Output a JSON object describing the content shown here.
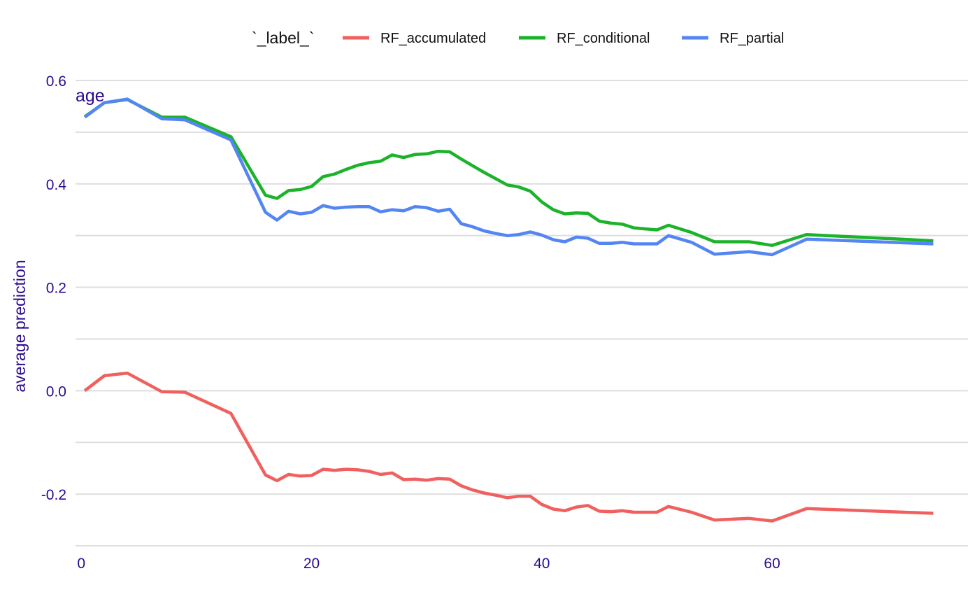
{
  "chart_data": {
    "type": "line",
    "panel_title": "age",
    "xlabel": "",
    "ylabel": "average prediction",
    "xlim": [
      -0.5,
      77
    ],
    "ylim": [
      -0.3,
      0.6
    ],
    "x_ticks": [
      0,
      20,
      40,
      60
    ],
    "x_tick_labels": [
      "0",
      "20",
      "40",
      "60"
    ],
    "y_ticks": [
      -0.2,
      0,
      0.2,
      0.4,
      0.6
    ],
    "y_tick_labels": [
      "-0.2",
      "0.0",
      "0.2",
      "0.4",
      "0.6"
    ],
    "grid": true,
    "legend": {
      "title": "`_label_`",
      "position": "top"
    },
    "series": [
      {
        "name": "RF_accumulated",
        "color": "#F0605E",
        "x": [
          0.3,
          2,
          4,
          7,
          9,
          13,
          16,
          17,
          18,
          19,
          20,
          21,
          22,
          23,
          24,
          25,
          26,
          27,
          28,
          29,
          30,
          31,
          32,
          33,
          34,
          35,
          36,
          37,
          38,
          39,
          40,
          41,
          42,
          43,
          44,
          45,
          46,
          47,
          48,
          49,
          50,
          51,
          53,
          55,
          58,
          60,
          63,
          74
        ],
        "values": [
          0.0,
          0.029,
          0.034,
          -0.002,
          -0.003,
          -0.044,
          -0.163,
          -0.174,
          -0.162,
          -0.165,
          -0.164,
          -0.152,
          -0.154,
          -0.152,
          -0.153,
          -0.156,
          -0.162,
          -0.159,
          -0.172,
          -0.171,
          -0.173,
          -0.17,
          -0.171,
          -0.184,
          -0.192,
          -0.198,
          -0.202,
          -0.207,
          -0.204,
          -0.204,
          -0.22,
          -0.229,
          -0.232,
          -0.225,
          -0.222,
          -0.233,
          -0.234,
          -0.232,
          -0.235,
          -0.235,
          -0.235,
          -0.224,
          -0.235,
          -0.25,
          -0.247,
          -0.252,
          -0.228,
          -0.237
        ]
      },
      {
        "name": "RF_conditional",
        "color": "#1BB32A",
        "x": [
          0.3,
          2,
          4,
          7,
          9,
          13,
          16,
          17,
          18,
          19,
          20,
          21,
          22,
          23,
          24,
          25,
          26,
          27,
          28,
          29,
          30,
          31,
          32,
          33,
          34,
          35,
          36,
          37,
          38,
          39,
          40,
          41,
          42,
          43,
          44,
          45,
          46,
          47,
          48,
          49,
          50,
          51,
          53,
          55,
          58,
          60,
          63,
          74
        ],
        "values": [
          0.53,
          0.557,
          0.563,
          0.529,
          0.529,
          0.491,
          0.378,
          0.372,
          0.387,
          0.389,
          0.395,
          0.414,
          0.419,
          0.428,
          0.436,
          0.441,
          0.444,
          0.456,
          0.451,
          0.457,
          0.458,
          0.463,
          0.462,
          0.448,
          0.435,
          0.422,
          0.41,
          0.398,
          0.394,
          0.386,
          0.365,
          0.35,
          0.342,
          0.344,
          0.343,
          0.328,
          0.324,
          0.322,
          0.315,
          0.313,
          0.311,
          0.32,
          0.306,
          0.288,
          0.288,
          0.281,
          0.302,
          0.29
        ]
      },
      {
        "name": "RF_partial",
        "color": "#5385F3",
        "x": [
          0.3,
          2,
          4,
          7,
          9,
          13,
          16,
          17,
          18,
          19,
          20,
          21,
          22,
          23,
          24,
          25,
          26,
          27,
          28,
          29,
          30,
          31,
          32,
          33,
          34,
          35,
          36,
          37,
          38,
          39,
          40,
          41,
          42,
          43,
          44,
          45,
          46,
          47,
          48,
          49,
          50,
          51,
          53,
          55,
          58,
          60,
          63,
          74
        ],
        "values": [
          0.529,
          0.557,
          0.564,
          0.526,
          0.524,
          0.485,
          0.345,
          0.33,
          0.347,
          0.342,
          0.345,
          0.358,
          0.353,
          0.355,
          0.356,
          0.356,
          0.346,
          0.35,
          0.348,
          0.356,
          0.354,
          0.347,
          0.351,
          0.323,
          0.317,
          0.309,
          0.304,
          0.3,
          0.302,
          0.307,
          0.301,
          0.292,
          0.288,
          0.297,
          0.295,
          0.285,
          0.285,
          0.287,
          0.284,
          0.284,
          0.284,
          0.3,
          0.287,
          0.264,
          0.269,
          0.263,
          0.293,
          0.284
        ]
      }
    ]
  }
}
